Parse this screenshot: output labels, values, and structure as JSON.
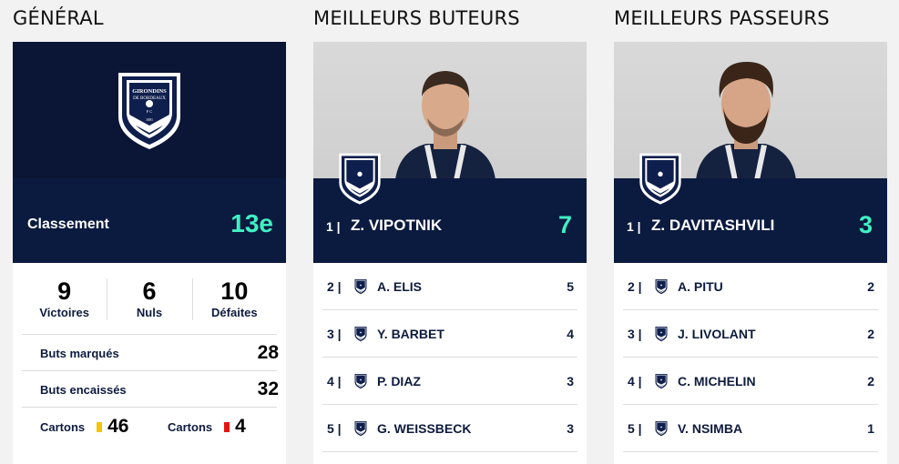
{
  "sections": {
    "general_title": "GÉNÉRAL",
    "scorers_title": "MEILLEURS BUTEURS",
    "assists_title": "MEILLEURS PASSEURS"
  },
  "general": {
    "crest": {
      "line1": "GIRONDINS",
      "line2": "DE BORDEAUX",
      "letters": "F C",
      "year": "1881"
    },
    "ranking_label": "Classement",
    "ranking_value": "13e",
    "wins": {
      "value": "9",
      "label": "Victoires"
    },
    "draws": {
      "value": "6",
      "label": "Nuls"
    },
    "losses": {
      "value": "10",
      "label": "Défaites"
    },
    "goals_for": {
      "label": "Buts marqués",
      "value": "28"
    },
    "goals_against": {
      "label": "Buts encaissés",
      "value": "32"
    },
    "yellow_cards": {
      "label": "Cartons",
      "value": "46",
      "color": "#f5c400"
    },
    "red_cards": {
      "label": "Cartons",
      "value": "4",
      "color": "#e3160f"
    }
  },
  "scorers": {
    "leader": {
      "rank": "1 |",
      "name": "Z. VIPOTNIK",
      "value": "7"
    },
    "list": [
      {
        "rank": "2 |",
        "name": "A. ELIS",
        "value": "5"
      },
      {
        "rank": "3 |",
        "name": "Y. BARBET",
        "value": "4"
      },
      {
        "rank": "4 |",
        "name": "P. DIAZ",
        "value": "3"
      },
      {
        "rank": "5 |",
        "name": "G. WEISSBECK",
        "value": "3"
      }
    ]
  },
  "assists": {
    "leader": {
      "rank": "1 |",
      "name": "Z. DAVITASHVILI",
      "value": "3"
    },
    "list": [
      {
        "rank": "2 |",
        "name": "A. PITU",
        "value": "2"
      },
      {
        "rank": "3 |",
        "name": "J. LIVOLANT",
        "value": "2"
      },
      {
        "rank": "4 |",
        "name": "C. MICHELIN",
        "value": "2"
      },
      {
        "rank": "5 |",
        "name": "V. NSIMBA",
        "value": "1"
      }
    ]
  },
  "colors": {
    "navy": "#0b1a3f",
    "accent": "#3ff0c3"
  }
}
